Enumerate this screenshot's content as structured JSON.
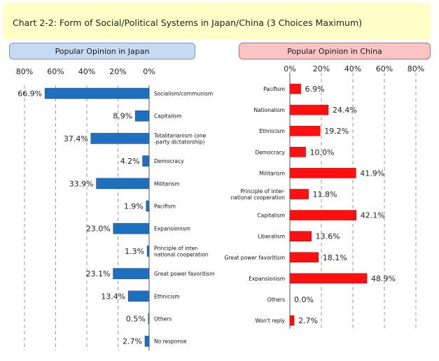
{
  "title": "Chart 2-2: Form of Social/Political Systems in Japan/China (3 Choices Maximum)",
  "chart_data": [
    {
      "type": "bar",
      "orientation": "horizontal",
      "title": "Popular Opinion in Japan",
      "axis_direction": "reversed",
      "xlim": [
        0,
        80
      ],
      "ticks": [
        "80%",
        "60%",
        "40%",
        "20%",
        "0%"
      ],
      "grid": true,
      "bar_color": "#1f6fbf",
      "categories": [
        [
          "Socialism/communism"
        ],
        [
          "Capitalism"
        ],
        [
          "Totalitarianism (one",
          "-party dictatorship)"
        ],
        [
          "Democracy"
        ],
        [
          "Militarism"
        ],
        [
          "Pacifism"
        ],
        [
          "Expansionism"
        ],
        [
          "Principle of inter-",
          "national cooperation"
        ],
        [
          "Great power favoritism"
        ],
        [
          "Ethnicism"
        ],
        [
          "Others"
        ],
        [
          "No response"
        ]
      ],
      "values": [
        66.9,
        8.9,
        37.4,
        4.2,
        33.9,
        1.9,
        23.0,
        1.3,
        23.1,
        13.4,
        0.5,
        2.7
      ],
      "labels": [
        "66.9%",
        "8.9%",
        "37.4%",
        "4.2%",
        "33.9%",
        "1.9%",
        "23.0%",
        "1.3%",
        "23.1%",
        "13.4%",
        "0.5%",
        "2.7%"
      ]
    },
    {
      "type": "bar",
      "orientation": "horizontal",
      "title": "Popular Opinion in China",
      "xlim": [
        0,
        80
      ],
      "ticks": [
        "0%",
        "20%",
        "40%",
        "60%",
        "80%"
      ],
      "grid": true,
      "bar_color": "#ff1010",
      "categories": [
        [
          "Pacifism"
        ],
        [
          "Nationalism"
        ],
        [
          "Ethnicism"
        ],
        [
          "Democracy"
        ],
        [
          "Militarism"
        ],
        [
          "Principle of inter-",
          "national cooperation"
        ],
        [
          "Capitalism"
        ],
        [
          "Liberalism"
        ],
        [
          "Great power favoritism"
        ],
        [
          "Expansionism"
        ],
        [
          "Others"
        ],
        [
          "Won't reply"
        ]
      ],
      "values": [
        6.9,
        24.4,
        19.2,
        10.0,
        41.9,
        11.8,
        42.1,
        13.6,
        18.1,
        48.9,
        0.0,
        2.7
      ],
      "labels": [
        "6.9%",
        "24.4%",
        "19.2%",
        "10.0%",
        "41.9%",
        "11.8%",
        "42.1%",
        "13.6%",
        "18.1%",
        "48.9%",
        "0.0%",
        "2.7%"
      ]
    }
  ]
}
